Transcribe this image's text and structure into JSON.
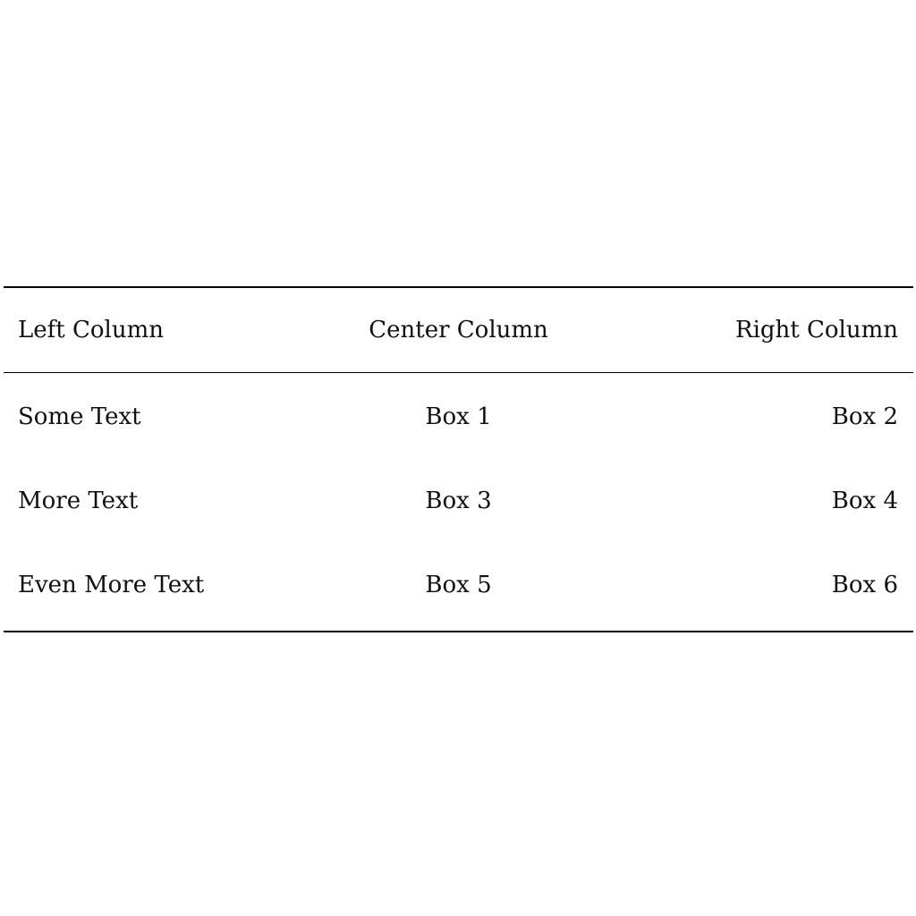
{
  "table": {
    "headers": [
      "Left Column",
      "Center Column",
      "Right Column"
    ],
    "rows": [
      [
        "Some Text",
        "Box 1",
        "Box 2"
      ],
      [
        "More Text",
        "Box 3",
        "Box 4"
      ],
      [
        "Even More Text",
        "Box 5",
        "Box 6"
      ]
    ]
  }
}
